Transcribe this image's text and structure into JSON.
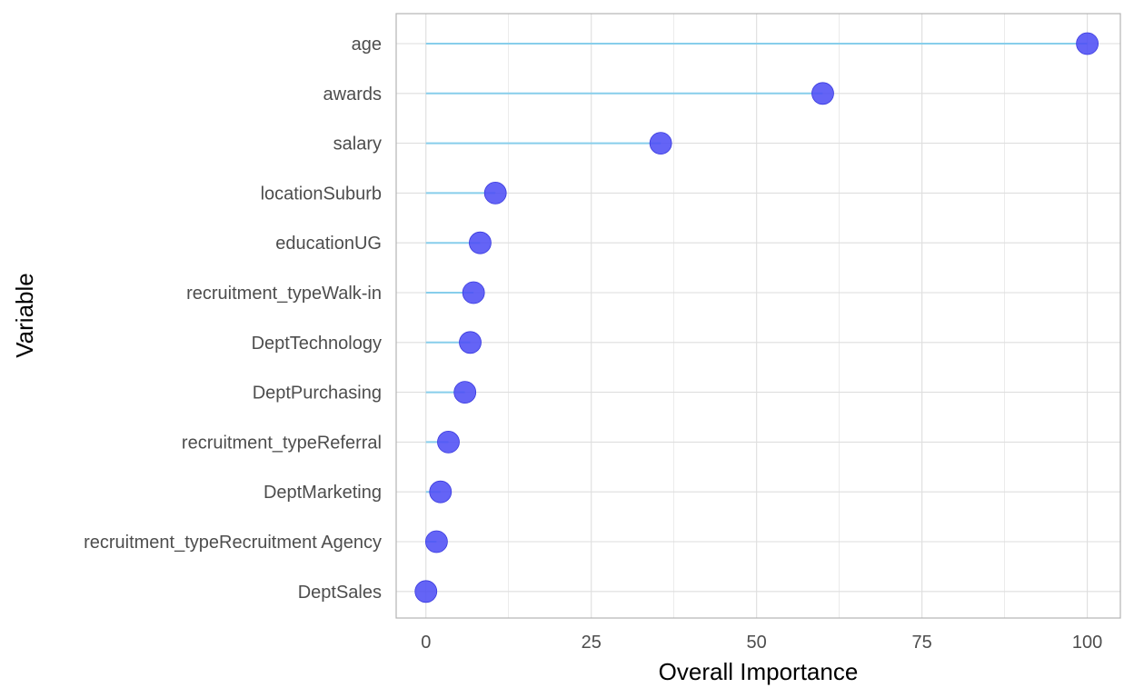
{
  "chart_data": {
    "type": "lollipop",
    "xlabel": "Overall Importance",
    "ylabel": "Variable",
    "xlim": [
      -4.5,
      105
    ],
    "x_ticks": [
      0,
      25,
      50,
      75,
      100
    ],
    "x_tick_labels": [
      "0",
      "25",
      "50",
      "75",
      "100"
    ],
    "grid": true,
    "colors": {
      "point": "#4f4ff5",
      "stem": "#87ceeb",
      "grid": "#dedede",
      "border": "#b3b3b3"
    },
    "categories": [
      "age",
      "awards",
      "salary",
      "locationSuburb",
      "educationUG",
      "recruitment_typeWalk-in",
      "DeptTechnology",
      "DeptPurchasing",
      "recruitment_typeReferral",
      "DeptMarketing",
      "recruitment_typeRecruitment Agency",
      "DeptSales"
    ],
    "values": [
      100,
      60,
      35.5,
      10.5,
      8.2,
      7.2,
      6.7,
      5.9,
      3.4,
      2.2,
      1.6,
      0
    ]
  }
}
